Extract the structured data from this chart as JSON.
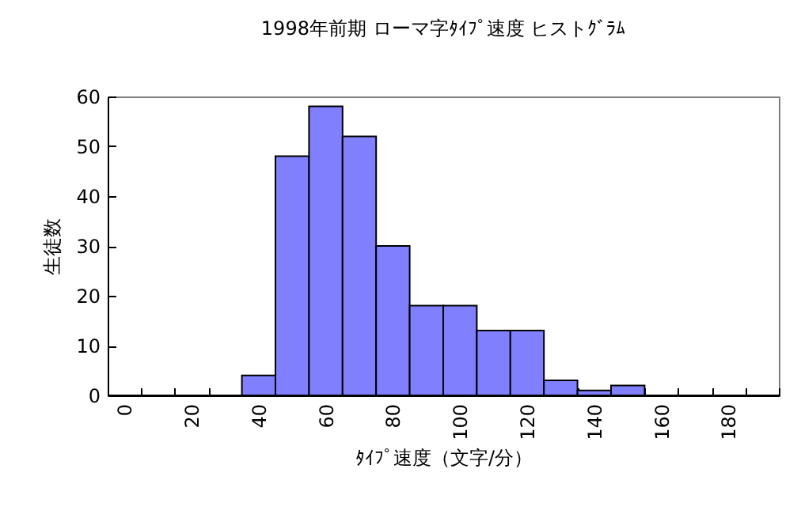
{
  "chart_data": {
    "type": "bar",
    "title": "1998年前期 ローマ字ﾀｲﾌﾟ速度 ヒストｸﾞﾗﾑ",
    "xlabel": "ﾀｲﾌﾟ速度（文字/分）",
    "ylabel": "生徒数",
    "categories": [
      "0",
      null,
      "20",
      null,
      "40",
      null,
      "60",
      null,
      "80",
      null,
      "100",
      null,
      "120",
      null,
      "140",
      null,
      "160",
      null,
      "180",
      null
    ],
    "values": [
      0,
      0,
      0,
      0,
      4,
      48,
      58,
      52,
      30,
      18,
      18,
      13,
      13,
      3,
      1,
      2,
      0,
      0,
      0,
      0
    ],
    "color": "#8080ff",
    "ylim": [
      0,
      60
    ],
    "yticks": [
      0,
      10,
      20,
      30,
      40,
      50,
      60
    ],
    "grid": false
  }
}
